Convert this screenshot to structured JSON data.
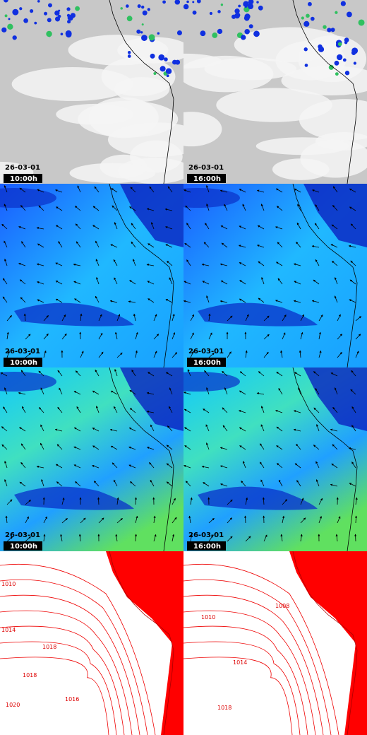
{
  "panels": [
    {
      "date": "26-03-01",
      "time": "10:00h"
    },
    {
      "date": "26-03-01",
      "time": "16:00h"
    },
    {
      "date": "26-03-01",
      "time": "10:00h"
    },
    {
      "date": "26-03-01",
      "time": "16:00h"
    },
    {
      "date": "26-03-01",
      "time": "10:00h"
    },
    {
      "date": "26-03-01",
      "time": "16:00h"
    }
  ],
  "isobars": {
    "left": [
      "1010",
      "1014",
      "1018",
      "1018",
      "1020",
      "1016"
    ],
    "right": [
      "1010",
      "1008",
      "1014",
      "1018"
    ]
  }
}
